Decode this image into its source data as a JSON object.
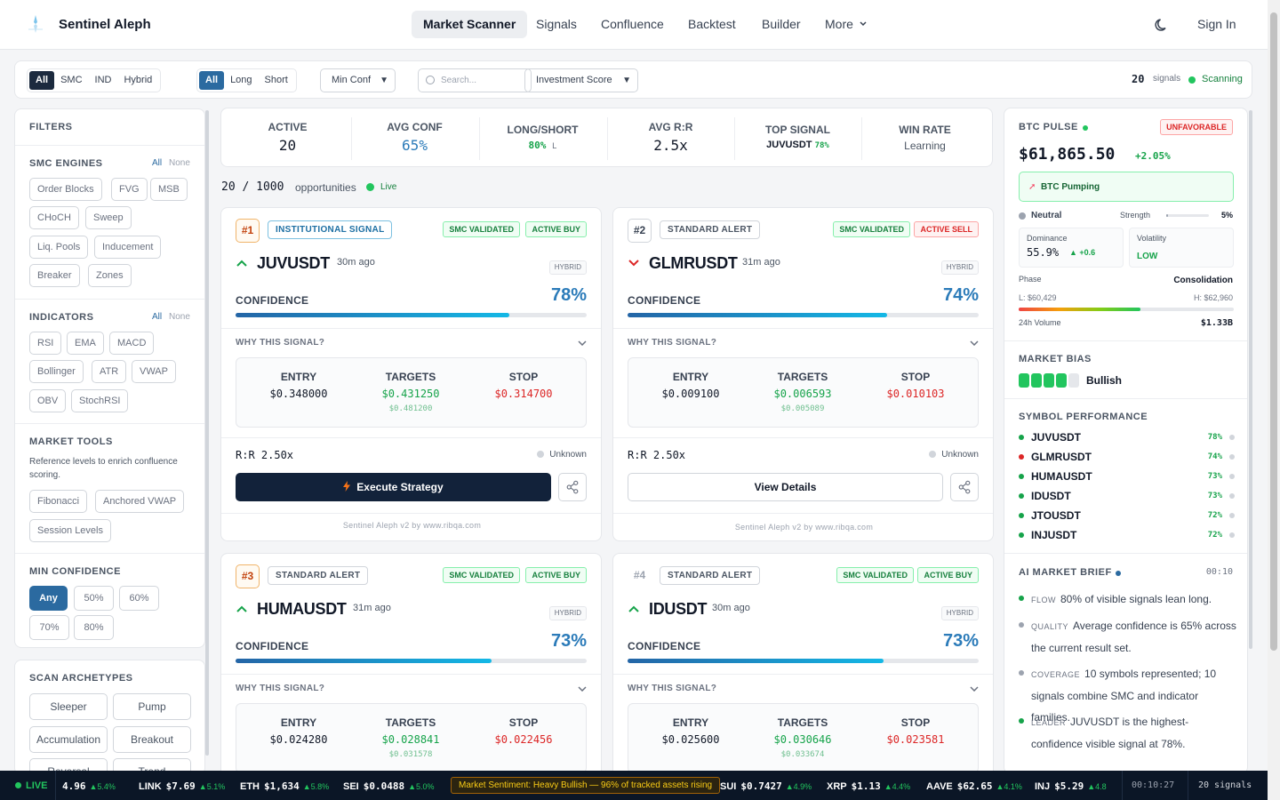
{
  "app": {
    "name": "Sentinel Aleph"
  },
  "nav": {
    "items": [
      "Market Scanner",
      "Signals",
      "Confluence",
      "Backtest",
      "Builder",
      "More"
    ],
    "active": "Market Scanner",
    "sign_in": "Sign In"
  },
  "toolbar": {
    "engine_filter": [
      "All",
      "SMC",
      "IND",
      "Hybrid"
    ],
    "direction_filter": [
      "All",
      "Long",
      "Short"
    ],
    "min_conf_select": "Min Conf",
    "search_placeholder": "Search...",
    "sort_select": "Investment Score",
    "signal_count": "20",
    "signal_count_label": "signals",
    "scan_status": "Scanning"
  },
  "filters": {
    "title": "FILTERS",
    "smc_engines": {
      "title": "SMC ENGINES",
      "all": "All",
      "none": "None",
      "chips": [
        "Order Blocks",
        "FVG",
        "MSB",
        "CHoCH",
        "Sweep",
        "Liq. Pools",
        "Inducement",
        "Breaker",
        "Zones"
      ]
    },
    "indicators": {
      "title": "INDICATORS",
      "all": "All",
      "none": "None",
      "chips": [
        "RSI",
        "EMA",
        "MACD",
        "Bollinger",
        "ATR",
        "VWAP",
        "OBV",
        "StochRSI"
      ]
    },
    "market_tools": {
      "title": "MARKET TOOLS",
      "description": "Reference levels to enrich confluence scoring.",
      "chips": [
        "Fibonacci",
        "Anchored VWAP",
        "Session Levels"
      ]
    },
    "min_confidence": {
      "title": "MIN CONFIDENCE",
      "options": [
        "Any",
        "50%",
        "60%",
        "70%",
        "80%"
      ],
      "selected": "Any"
    },
    "archetypes": {
      "title": "SCAN ARCHETYPES",
      "options": [
        "Sleeper",
        "Pump",
        "Accumulation",
        "Breakout",
        "Reversal",
        "Trend"
      ]
    }
  },
  "stats": {
    "active": {
      "label": "ACTIVE",
      "value": "20"
    },
    "avg_conf": {
      "label": "AVG CONF",
      "value": "65%"
    },
    "long_short": {
      "label": "LONG/SHORT",
      "value": "80%",
      "suffix": "L"
    },
    "avg_rr": {
      "label": "AVG R:R",
      "value": "2.5x"
    },
    "top_signal": {
      "label": "TOP SIGNAL",
      "symbol": "JUVUSDT",
      "conf": "78%"
    },
    "win_rate": {
      "label": "WIN RATE",
      "value": "Learning"
    }
  },
  "opportunities": {
    "count": "20 / 1000",
    "label": "opportunities",
    "status": "Live"
  },
  "labels": {
    "confidence": "CONFIDENCE",
    "why": "WHY THIS SIGNAL?",
    "entry": "ENTRY",
    "targets": "TARGETS",
    "stop": "STOP",
    "unknown": "Unknown",
    "footer": "Sentinel Aleph v2 by www.ribqa.com",
    "hybrid": "HYBRID",
    "smc_validated": "SMC VALIDATED"
  },
  "cards": [
    {
      "rank": "#1",
      "type": "INSTITUTIONAL SIGNAL",
      "status": "ACTIVE BUY",
      "symbol": "JUVUSDT",
      "ago": "30m ago",
      "conf": "78%",
      "conf_value": 0.78,
      "entry": "$0.348000",
      "target1": "$0.431250",
      "target2": "$0.481200",
      "stop": "$0.314700",
      "rr": "R:R 2.50x",
      "action": "Execute Strategy"
    },
    {
      "rank": "#2",
      "type": "STANDARD ALERT",
      "status": "ACTIVE SELL",
      "symbol": "GLMRUSDT",
      "ago": "31m ago",
      "conf": "74%",
      "conf_value": 0.74,
      "entry": "$0.009100",
      "target1": "$0.006593",
      "target2": "$0.005089",
      "stop": "$0.010103",
      "rr": "R:R 2.50x",
      "action": "View Details"
    },
    {
      "rank": "#3",
      "type": "STANDARD ALERT",
      "status": "ACTIVE BUY",
      "symbol": "HUMAUSDT",
      "ago": "31m ago",
      "conf": "73%",
      "conf_value": 0.73,
      "entry": "$0.024280",
      "target1": "$0.028841",
      "target2": "$0.031578",
      "stop": "$0.022456"
    },
    {
      "rank": "#4",
      "type": "STANDARD ALERT",
      "status": "ACTIVE BUY",
      "symbol": "IDUSDT",
      "ago": "30m ago",
      "conf": "73%",
      "conf_value": 0.73,
      "entry": "$0.025600",
      "target1": "$0.030646",
      "target2": "$0.033674",
      "stop": "$0.023581"
    }
  ],
  "btc": {
    "title": "BTC PULSE",
    "tag": "UNFAVORABLE",
    "price": "$61,865.50",
    "change": "+2.05%",
    "pump": "BTC Pumping",
    "state": "Neutral",
    "strength_label": "Strength",
    "strength": "5%",
    "strength_value": 0.05,
    "dominance_label": "Dominance",
    "dominance": "55.9%",
    "dominance_change": "▲ +0.6",
    "volatility_label": "Volatility",
    "volatility": "LOW",
    "phase_label": "Phase",
    "phase": "Consolidation",
    "low": "L: $60,429",
    "high": "H: $62,960",
    "volume_label": "24h Volume",
    "volume": "$1.33B"
  },
  "bias": {
    "title": "MARKET BIAS",
    "value": "Bullish",
    "level": 4,
    "max": 5
  },
  "performance": {
    "title": "SYMBOL PERFORMANCE",
    "items": [
      {
        "symbol": "JUVUSDT",
        "conf": "78%",
        "color": "#16a34a"
      },
      {
        "symbol": "GLMRUSDT",
        "conf": "74%",
        "color": "#dc2626"
      },
      {
        "symbol": "HUMAUSDT",
        "conf": "73%",
        "color": "#16a34a"
      },
      {
        "symbol": "IDUSDT",
        "conf": "73%",
        "color": "#16a34a"
      },
      {
        "symbol": "JTOUSDT",
        "conf": "72%",
        "color": "#16a34a"
      },
      {
        "symbol": "INJUSDT",
        "conf": "72%",
        "color": "#16a34a"
      }
    ]
  },
  "brief": {
    "title": "AI MARKET BRIEF",
    "time": "00:10",
    "items": [
      {
        "key": "FLOW",
        "text": "80% of visible signals lean long.",
        "color": "#16a34a"
      },
      {
        "key": "QUALITY",
        "text": "Average confidence is 65% across the current result set.",
        "color": "#9ca3af"
      },
      {
        "key": "COVERAGE",
        "text": "10 symbols represented; 10 signals combine SMC and indicator families.",
        "color": "#9ca3af"
      },
      {
        "key": "LEADER",
        "text": "JUVUSDT is the highest-confidence visible signal at 78%.",
        "color": "#16a34a"
      }
    ]
  },
  "ticker": {
    "live": "LIVE",
    "items": [
      {
        "sym": "",
        "price": "4.96",
        "chg": "▲5.4%"
      },
      {
        "sym": "LINK",
        "price": "$7.69",
        "chg": "▲5.1%"
      },
      {
        "sym": "ETH",
        "price": "$1,634",
        "chg": "▲5.8%"
      },
      {
        "sym": "SEI",
        "price": "$0.0488",
        "chg": "▲5.0%"
      }
    ],
    "sentiment": "Market Sentiment: Heavy Bullish — 96% of tracked assets rising",
    "items2": [
      {
        "sym": "SUI",
        "price": "$0.7427",
        "chg": "▲4.9%"
      },
      {
        "sym": "XRP",
        "price": "$1.13",
        "chg": "▲4.4%"
      },
      {
        "sym": "AAVE",
        "price": "$62.65",
        "chg": "▲4.1%"
      },
      {
        "sym": "INJ",
        "price": "$5.29",
        "chg": "▲4.8"
      }
    ],
    "time": "00:10:27",
    "count": "20 signals"
  },
  "colors": {
    "accent": "#2b7bb9",
    "buy": "#16a34a",
    "sell": "#dc2626",
    "dark": "#12223a"
  }
}
